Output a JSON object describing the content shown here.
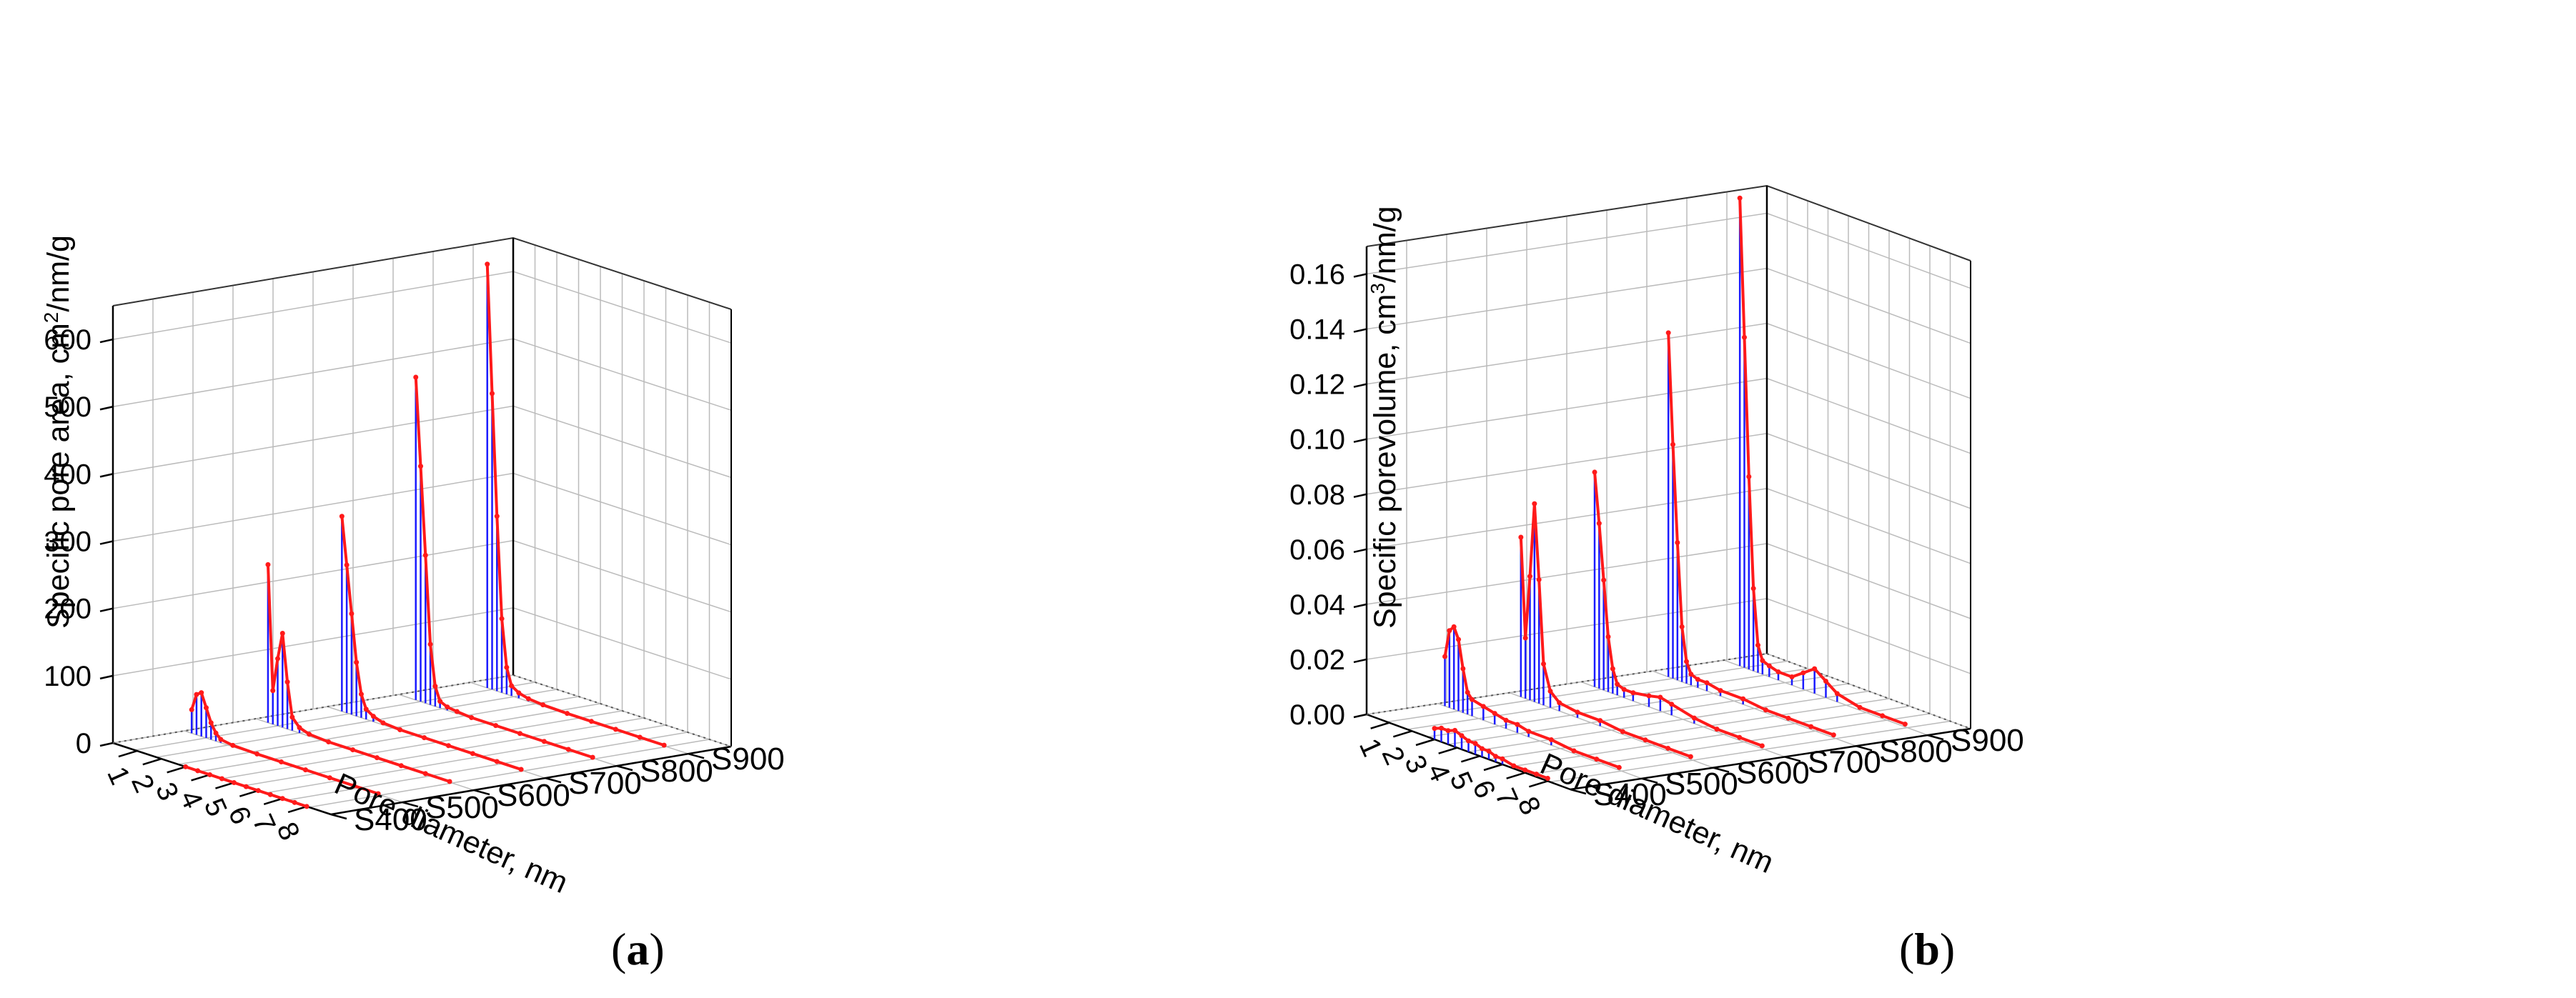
{
  "chart_data": [
    {
      "type": "3d-waterfall",
      "panel_label": "a",
      "ylabel": "Specific pore area, cm",
      "ylabel_sup": "2",
      "ylabel_tail": "/nm/g",
      "xlabel": "Pore diameter, nm",
      "z_ticks": [
        "0",
        "100",
        "200",
        "300",
        "400",
        "500",
        "600"
      ],
      "z_range": [
        0,
        650
      ],
      "x_ticks": [
        "1",
        "2",
        "3",
        "4",
        "5",
        "6",
        "7",
        "8"
      ],
      "x_range": [
        0,
        9
      ],
      "grid": true,
      "series": [
        {
          "name": "S400",
          "x": [
            3.0,
            3.5,
            4.0,
            4.5,
            5.0,
            5.5,
            6.0,
            6.5,
            7.0,
            7.5,
            8.0
          ],
          "y": [
            0,
            0,
            0,
            0,
            0,
            0,
            0,
            0,
            0,
            0,
            0
          ]
        },
        {
          "name": "S500",
          "x": [
            0.3,
            0.5,
            0.7,
            0.9,
            1.1,
            1.3,
            1.5,
            2,
            3,
            4,
            5,
            6,
            7,
            8
          ],
          "y": [
            35,
            60,
            65,
            45,
            25,
            12,
            5,
            2,
            1,
            1,
            1,
            1,
            1,
            1
          ]
        },
        {
          "name": "S600",
          "x": [
            0.5,
            0.7,
            0.9,
            1.1,
            1.3,
            1.5,
            1.8,
            2.2,
            3,
            4,
            5,
            6,
            7,
            8
          ],
          "y": [
            235,
            50,
            100,
            140,
            70,
            20,
            8,
            3,
            1,
            1,
            1,
            1,
            1,
            1
          ]
        },
        {
          "name": "S700",
          "x": [
            0.6,
            0.8,
            1.0,
            1.2,
            1.4,
            1.6,
            1.9,
            2.3,
            3,
            4,
            5,
            6,
            7,
            8
          ],
          "y": [
            290,
            220,
            150,
            80,
            35,
            15,
            8,
            3,
            1,
            1,
            1,
            1,
            1,
            1
          ]
        },
        {
          "name": "S800",
          "x": [
            0.7,
            0.9,
            1.1,
            1.3,
            1.5,
            1.7,
            2.0,
            2.4,
            3,
            4,
            5,
            6,
            7,
            8
          ],
          "y": [
            480,
            350,
            220,
            90,
            30,
            10,
            5,
            3,
            1,
            1,
            1,
            1,
            1,
            1
          ]
        },
        {
          "name": "S900",
          "x": [
            0.7,
            0.9,
            1.1,
            1.3,
            1.5,
            1.7,
            2.0,
            2.4,
            3,
            4,
            5,
            6,
            7,
            8
          ],
          "y": [
            630,
            440,
            260,
            110,
            40,
            15,
            8,
            4,
            2,
            1,
            1,
            1,
            1,
            1
          ]
        }
      ]
    },
    {
      "type": "3d-waterfall",
      "panel_label": "b",
      "ylabel": "Specific porevolume, cm",
      "ylabel_sup": "3",
      "ylabel_tail": "/nm/g",
      "xlabel": "Pore diameter, nm",
      "z_ticks": [
        "0.00",
        "0.02",
        "0.04",
        "0.06",
        "0.08",
        "0.10",
        "0.12",
        "0.14",
        "0.16"
      ],
      "z_range": [
        0,
        0.17
      ],
      "x_ticks": [
        "1",
        "2",
        "3",
        "4",
        "5",
        "6",
        "7",
        "8"
      ],
      "x_range": [
        0,
        9
      ],
      "grid": true,
      "series": [
        {
          "name": "S400",
          "x": [
            3.0,
            3.3,
            3.6,
            3.9,
            4.2,
            4.5,
            4.8,
            5.1,
            5.4,
            5.7,
            6.0,
            6.5,
            7.0,
            7.5,
            8.0
          ],
          "y": [
            0.004,
            0.005,
            0.005,
            0.006,
            0.005,
            0.004,
            0.004,
            0.003,
            0.003,
            0.002,
            0.002,
            0.001,
            0.001,
            0.001,
            0.001
          ]
        },
        {
          "name": "S500",
          "x": [
            0.3,
            0.5,
            0.7,
            0.9,
            1.1,
            1.3,
            1.5,
            2,
            2.5,
            3,
            3.5,
            4,
            5,
            6,
            7,
            8
          ],
          "y": [
            0.018,
            0.028,
            0.03,
            0.026,
            0.016,
            0.008,
            0.006,
            0.005,
            0.004,
            0.003,
            0.003,
            0.002,
            0.002,
            0.001,
            0.001,
            0.001
          ]
        },
        {
          "name": "S600",
          "x": [
            0.5,
            0.7,
            0.9,
            1.1,
            1.3,
            1.5,
            1.8,
            2.2,
            3,
            4,
            5,
            6,
            7,
            8
          ],
          "y": [
            0.058,
            0.022,
            0.045,
            0.072,
            0.045,
            0.015,
            0.006,
            0.003,
            0.002,
            0.002,
            0.001,
            0.001,
            0.001,
            0.001
          ]
        },
        {
          "name": "S700",
          "x": [
            0.6,
            0.8,
            1.0,
            1.2,
            1.4,
            1.6,
            1.9,
            2.3,
            3,
            3.5,
            4,
            5,
            6,
            7,
            8
          ],
          "y": [
            0.078,
            0.06,
            0.04,
            0.02,
            0.009,
            0.004,
            0.003,
            0.003,
            0.004,
            0.005,
            0.004,
            0.002,
            0.001,
            0.001,
            0.001
          ]
        },
        {
          "name": "S800",
          "x": [
            0.7,
            0.9,
            1.1,
            1.3,
            1.5,
            1.7,
            2.0,
            2.4,
            3,
            4,
            5,
            6,
            7,
            8
          ],
          "y": [
            0.125,
            0.085,
            0.05,
            0.02,
            0.008,
            0.004,
            0.003,
            0.003,
            0.002,
            0.002,
            0.001,
            0.001,
            0.001,
            0.001
          ]
        },
        {
          "name": "S900",
          "x": [
            0.7,
            0.9,
            1.1,
            1.3,
            1.5,
            1.7,
            2.0,
            2.4,
            3,
            3.5,
            4,
            4.5,
            5,
            6,
            7,
            8
          ],
          "y": [
            0.17,
            0.12,
            0.07,
            0.03,
            0.01,
            0.005,
            0.004,
            0.003,
            0.003,
            0.006,
            0.009,
            0.006,
            0.003,
            0.001,
            0.001,
            0.001
          ]
        }
      ]
    }
  ]
}
